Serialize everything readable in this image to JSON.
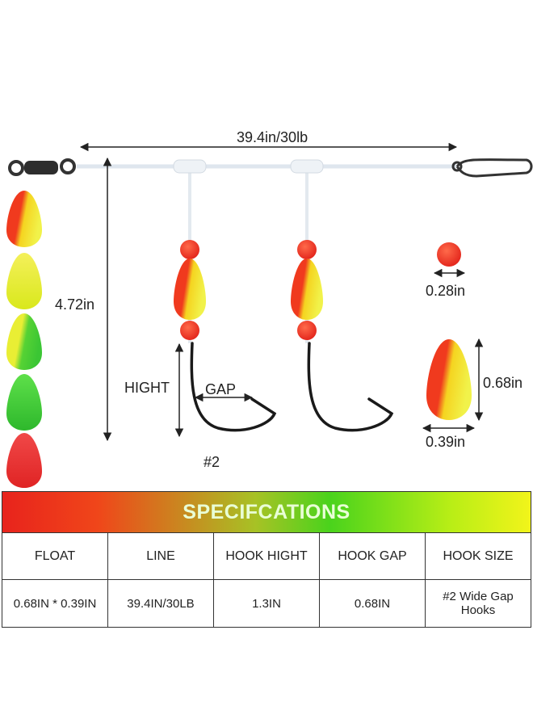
{
  "diagram": {
    "main_line": "39.4in/30lb",
    "drop_length": "4.72in",
    "hook_height": "HIGHT",
    "hook_gap": "GAP",
    "hook_size": "#2",
    "bead_size": "0.28in",
    "float_height": "0.68in",
    "float_width": "0.39in"
  },
  "table": {
    "title": "SPECIFCATIONS",
    "header": [
      "FLOAT",
      "LINE",
      "HOOK HIGHT",
      "HOOK GAP",
      "HOOK SIZE"
    ],
    "rows": [
      [
        "0.68IN * 0.39IN",
        "39.4IN/30LB",
        "1.3IN",
        "0.68IN",
        "#2 Wide Gap Hooks"
      ]
    ]
  }
}
